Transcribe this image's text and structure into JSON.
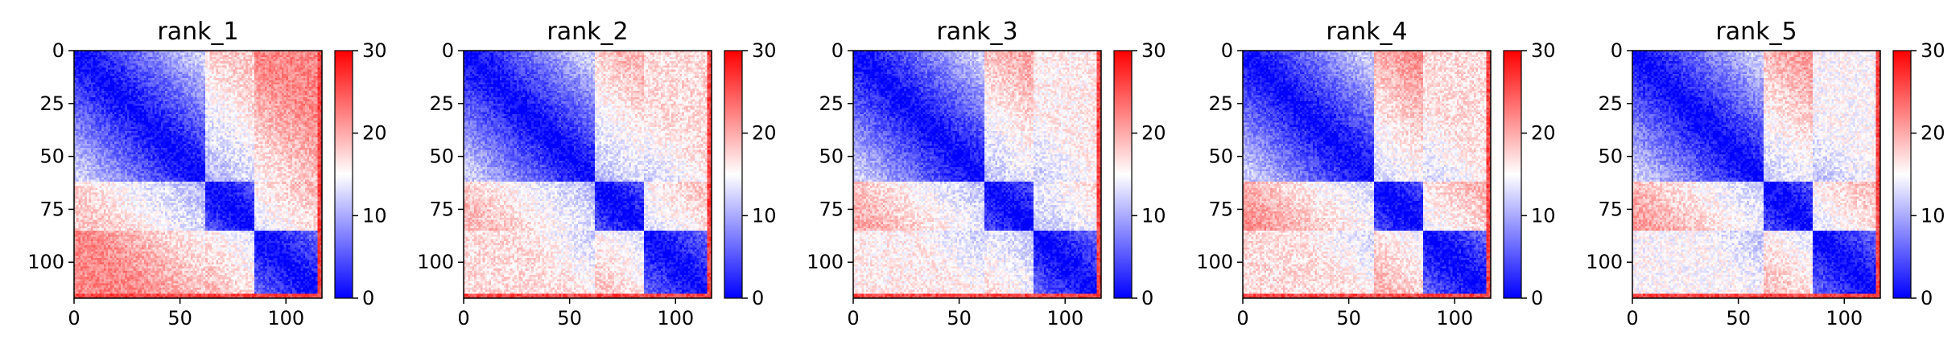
{
  "chart_data": [
    {
      "type": "heatmap",
      "title": "rank_1",
      "x_ticks": [
        0,
        50,
        100
      ],
      "y_ticks": [
        0,
        25,
        50,
        75,
        100
      ],
      "xlim": [
        0,
        117
      ],
      "ylim": [
        117,
        0
      ],
      "colorbar": {
        "min": 0,
        "max": 30,
        "ticks": [
          0,
          10,
          20,
          30
        ],
        "colormap": "bwr"
      },
      "domains": [
        [
          0,
          62
        ],
        [
          62,
          85
        ],
        [
          85,
          117
        ]
      ],
      "between_domain_distance": [
        [
          0,
          18,
          22
        ],
        [
          18,
          0,
          24
        ],
        [
          22,
          24,
          0
        ]
      ]
    },
    {
      "type": "heatmap",
      "title": "rank_2",
      "x_ticks": [
        0,
        50,
        100
      ],
      "y_ticks": [
        0,
        25,
        50,
        75,
        100
      ],
      "xlim": [
        0,
        117
      ],
      "ylim": [
        117,
        0
      ],
      "colorbar": {
        "min": 0,
        "max": 30,
        "ticks": [
          0,
          10,
          20,
          30
        ],
        "colormap": "bwr"
      },
      "domains": [
        [
          0,
          62
        ],
        [
          62,
          85
        ],
        [
          85,
          117
        ]
      ],
      "between_domain_distance": [
        [
          0,
          19,
          17
        ],
        [
          19,
          0,
          23
        ],
        [
          17,
          23,
          0
        ]
      ]
    },
    {
      "type": "heatmap",
      "title": "rank_3",
      "x_ticks": [
        0,
        50,
        100
      ],
      "y_ticks": [
        0,
        25,
        50,
        75,
        100
      ],
      "xlim": [
        0,
        117
      ],
      "ylim": [
        117,
        0
      ],
      "colorbar": {
        "min": 0,
        "max": 30,
        "ticks": [
          0,
          10,
          20,
          30
        ],
        "colormap": "bwr"
      },
      "domains": [
        [
          0,
          62
        ],
        [
          62,
          85
        ],
        [
          85,
          117
        ]
      ],
      "between_domain_distance": [
        [
          0,
          20,
          16
        ],
        [
          20,
          0,
          20
        ],
        [
          16,
          20,
          0
        ]
      ]
    },
    {
      "type": "heatmap",
      "title": "rank_4",
      "x_ticks": [
        0,
        50,
        100
      ],
      "y_ticks": [
        0,
        25,
        50,
        75,
        100
      ],
      "xlim": [
        0,
        117
      ],
      "ylim": [
        117,
        0
      ],
      "colorbar": {
        "min": 0,
        "max": 30,
        "ticks": [
          0,
          10,
          20,
          30
        ],
        "colormap": "bwr"
      },
      "domains": [
        [
          0,
          62
        ],
        [
          62,
          85
        ],
        [
          85,
          117
        ]
      ],
      "between_domain_distance": [
        [
          0,
          22,
          17
        ],
        [
          22,
          0,
          25
        ],
        [
          17,
          25,
          0
        ]
      ]
    },
    {
      "type": "heatmap",
      "title": "rank_5",
      "x_ticks": [
        0,
        50,
        100
      ],
      "y_ticks": [
        0,
        25,
        50,
        75,
        100
      ],
      "xlim": [
        0,
        117
      ],
      "ylim": [
        117,
        0
      ],
      "colorbar": {
        "min": 0,
        "max": 30,
        "ticks": [
          0,
          10,
          20,
          30
        ],
        "colormap": "bwr"
      },
      "domains": [
        [
          0,
          62
        ],
        [
          62,
          85
        ],
        [
          85,
          117
        ]
      ],
      "between_domain_distance": [
        [
          0,
          21,
          15
        ],
        [
          21,
          0,
          24
        ],
        [
          15,
          24,
          0
        ]
      ]
    }
  ]
}
